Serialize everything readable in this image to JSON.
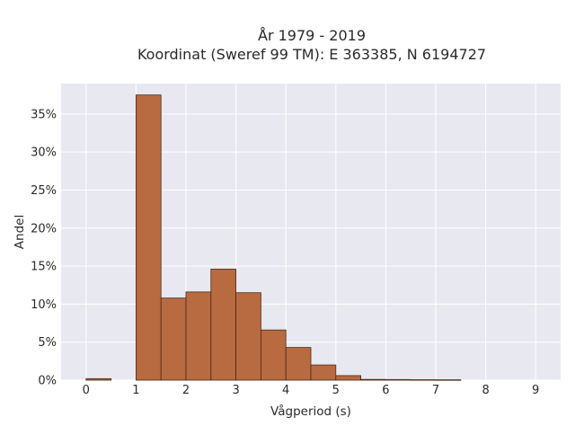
{
  "chart_data": {
    "type": "bar",
    "title_line1": "År 1979 - 2019",
    "title_line2": "Koordinat (Sweref 99 TM): E 363385, N 6194727",
    "xlabel": "Vågperiod (s)",
    "ylabel": "Andel",
    "xlim": [
      -0.5,
      9.5
    ],
    "ylim": [
      0,
      0.39
    ],
    "xticks": [
      0,
      1,
      2,
      3,
      4,
      5,
      6,
      7,
      8,
      9
    ],
    "xtick_labels": [
      "0",
      "1",
      "2",
      "3",
      "4",
      "5",
      "6",
      "7",
      "8",
      "9"
    ],
    "yticks": [
      0,
      0.05,
      0.1,
      0.15,
      0.2,
      0.25,
      0.3,
      0.35
    ],
    "ytick_labels": [
      "0%",
      "5%",
      "10%",
      "15%",
      "20%",
      "25%",
      "30%",
      "35%"
    ],
    "grid": true,
    "bins": [
      {
        "x0": 0.0,
        "x1": 0.5,
        "value": 0.002
      },
      {
        "x0": 1.0,
        "x1": 1.5,
        "value": 0.375
      },
      {
        "x0": 1.5,
        "x1": 2.0,
        "value": 0.108
      },
      {
        "x0": 2.0,
        "x1": 2.5,
        "value": 0.116
      },
      {
        "x0": 2.5,
        "x1": 3.0,
        "value": 0.146
      },
      {
        "x0": 3.0,
        "x1": 3.5,
        "value": 0.115
      },
      {
        "x0": 3.5,
        "x1": 4.0,
        "value": 0.066
      },
      {
        "x0": 4.0,
        "x1": 4.5,
        "value": 0.043
      },
      {
        "x0": 4.5,
        "x1": 5.0,
        "value": 0.02
      },
      {
        "x0": 5.0,
        "x1": 5.5,
        "value": 0.006
      },
      {
        "x0": 5.5,
        "x1": 6.0,
        "value": 0.001
      },
      {
        "x0": 6.0,
        "x1": 6.5,
        "value": 0.0008
      },
      {
        "x0": 6.5,
        "x1": 7.0,
        "value": 0.0006
      },
      {
        "x0": 7.0,
        "x1": 7.5,
        "value": 0.0005
      }
    ],
    "colors": {
      "bar_fill": "#b86a41",
      "bar_stroke": "#4a2a18",
      "plot_bg": "#e8e8f0",
      "grid": "#ffffff"
    }
  }
}
